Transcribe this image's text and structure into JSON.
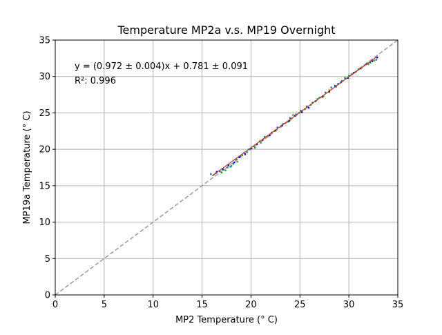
{
  "chart_data": {
    "type": "scatter",
    "title": "Temperature MP2a v.s. MP19 Overnight",
    "xlabel": "MP2 Temperature (° C)",
    "ylabel": "MP19a Temperature (° C)",
    "xlim": [
      0,
      35
    ],
    "ylim": [
      0,
      35
    ],
    "xticks": [
      0,
      5,
      10,
      15,
      20,
      25,
      30,
      35
    ],
    "yticks": [
      0,
      5,
      10,
      15,
      20,
      25,
      30,
      35
    ],
    "grid": true,
    "annotations": {
      "fit_equation": "y = (0.972 ± 0.004)x + 0.781 ± 0.091",
      "r_squared": "R²: 0.996"
    },
    "reference_line": {
      "slope": 1,
      "intercept": 0,
      "style": "dashed",
      "color": "#a0a0a0"
    },
    "fit_line": {
      "slope": 0.972,
      "intercept": 0.781,
      "x_range": [
        16.0,
        32.9
      ],
      "color": "#c0392b"
    },
    "series": [
      {
        "color": "#1f77b4",
        "points": [
          [
            15.9,
            16.6
          ],
          [
            16.4,
            16.7
          ],
          [
            16.8,
            17.0
          ],
          [
            17.2,
            17.2
          ],
          [
            17.6,
            17.5
          ],
          [
            17.9,
            17.6
          ],
          [
            18.2,
            18.0
          ],
          [
            18.5,
            18.6
          ],
          [
            18.9,
            19.0
          ],
          [
            19.3,
            19.5
          ],
          [
            19.8,
            20.0
          ],
          [
            20.3,
            20.4
          ],
          [
            20.9,
            21.1
          ],
          [
            21.4,
            21.7
          ],
          [
            22.1,
            22.3
          ],
          [
            22.7,
            23.0
          ],
          [
            23.3,
            23.5
          ],
          [
            24.0,
            24.3
          ],
          [
            24.6,
            24.8
          ],
          [
            25.1,
            25.3
          ],
          [
            25.7,
            25.9
          ],
          [
            26.3,
            26.4
          ],
          [
            27.0,
            27.1
          ],
          [
            27.6,
            27.8
          ],
          [
            28.2,
            28.5
          ],
          [
            28.9,
            29.0
          ],
          [
            29.6,
            29.8
          ],
          [
            30.3,
            30.3
          ],
          [
            31.0,
            31.0
          ],
          [
            31.6,
            31.5
          ],
          [
            32.2,
            31.9
          ],
          [
            32.8,
            32.3
          ]
        ]
      },
      {
        "color": "#2ca02c",
        "points": [
          [
            16.2,
            16.5
          ],
          [
            17.0,
            16.8
          ],
          [
            17.4,
            17.1
          ],
          [
            18.0,
            17.7
          ],
          [
            18.6,
            18.3
          ],
          [
            19.1,
            19.2
          ],
          [
            19.6,
            19.6
          ],
          [
            20.4,
            20.2
          ],
          [
            21.0,
            20.9
          ],
          [
            21.7,
            21.8
          ],
          [
            22.4,
            22.5
          ],
          [
            23.1,
            23.2
          ],
          [
            23.8,
            23.8
          ],
          [
            24.3,
            24.7
          ],
          [
            24.9,
            25.0
          ],
          [
            25.5,
            25.5
          ],
          [
            26.1,
            26.1
          ],
          [
            26.8,
            26.9
          ],
          [
            27.4,
            27.3
          ],
          [
            28.0,
            28.1
          ],
          [
            28.7,
            28.6
          ],
          [
            29.3,
            29.4
          ],
          [
            30.0,
            30.1
          ],
          [
            30.7,
            30.6
          ],
          [
            31.3,
            31.2
          ],
          [
            32.0,
            31.7
          ],
          [
            32.6,
            32.2
          ]
        ]
      },
      {
        "color": "#0000dd",
        "points": [
          [
            16.5,
            16.9
          ],
          [
            17.1,
            17.3
          ],
          [
            17.7,
            17.8
          ],
          [
            18.3,
            18.2
          ],
          [
            18.8,
            18.9
          ],
          [
            19.4,
            19.3
          ],
          [
            20.0,
            20.1
          ],
          [
            20.6,
            20.7
          ],
          [
            21.2,
            21.3
          ],
          [
            21.9,
            21.9
          ],
          [
            22.5,
            22.6
          ],
          [
            23.2,
            23.3
          ],
          [
            23.9,
            23.9
          ],
          [
            24.5,
            24.6
          ],
          [
            25.2,
            25.1
          ],
          [
            25.9,
            25.7
          ],
          [
            26.6,
            26.6
          ],
          [
            27.3,
            27.2
          ],
          [
            28.0,
            27.9
          ],
          [
            28.6,
            28.7
          ],
          [
            29.2,
            29.2
          ],
          [
            29.9,
            29.8
          ],
          [
            30.5,
            30.5
          ],
          [
            31.2,
            31.1
          ],
          [
            31.8,
            31.7
          ],
          [
            32.4,
            32.1
          ],
          [
            32.9,
            32.6
          ]
        ]
      }
    ]
  }
}
